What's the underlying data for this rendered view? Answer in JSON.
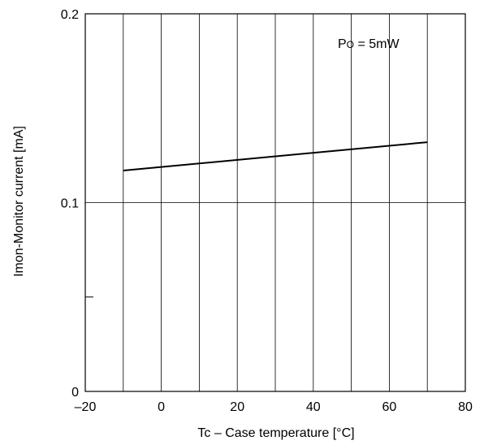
{
  "chart_data": {
    "type": "line",
    "xlabel": "Tc – Case temperature [°C]",
    "ylabel": "Imon-Monitor current [mA]",
    "xlim": [
      -20,
      80
    ],
    "ylim": [
      0,
      0.2
    ],
    "x_ticks": [
      {
        "value": -20,
        "label": "–20"
      },
      {
        "value": 0,
        "label": "0"
      },
      {
        "value": 20,
        "label": "20"
      },
      {
        "value": 40,
        "label": "40"
      },
      {
        "value": 60,
        "label": "60"
      },
      {
        "value": 80,
        "label": "80"
      }
    ],
    "y_ticks": [
      {
        "value": 0,
        "label": "0"
      },
      {
        "value": 0.1,
        "label": "0.1"
      },
      {
        "value": 0.2,
        "label": "0.2"
      }
    ],
    "x_gridlines": [
      -10,
      0,
      10,
      20,
      30,
      40,
      50,
      60,
      70
    ],
    "y_gridlines": [
      0.1
    ],
    "y_minor_ticks": [
      0.05
    ],
    "grid": true,
    "series": [
      {
        "x": [
          -10,
          70
        ],
        "y": [
          0.117,
          0.132
        ]
      }
    ],
    "annotation": {
      "main": "P",
      "sub": "O",
      "rest": " = 5mW"
    }
  }
}
